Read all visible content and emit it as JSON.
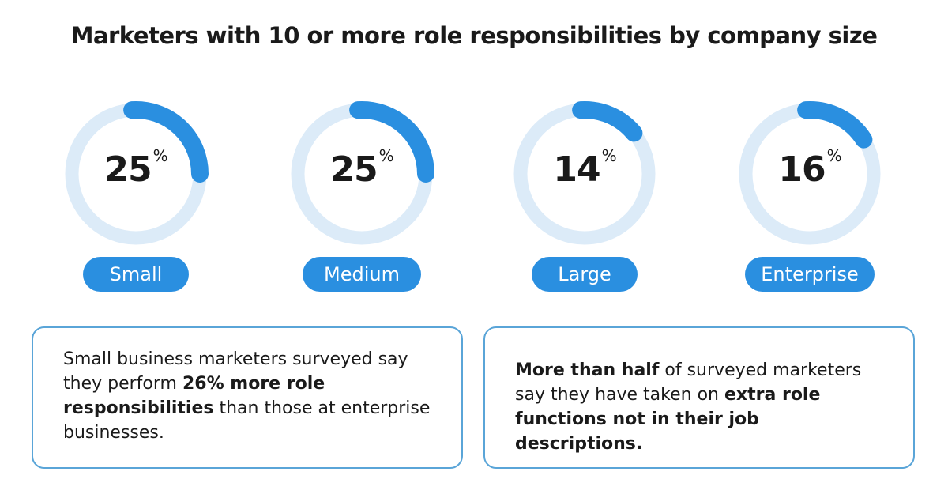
{
  "colors": {
    "arc": "#2a8fe0",
    "track": "#dcebf8",
    "pill": "#2a8fe0"
  },
  "chart_data": {
    "type": "donut-gauges",
    "title": "Marketers with 10 or more role responsibilities by company size",
    "categories": [
      "Small",
      "Medium",
      "Large",
      "Enterprise"
    ],
    "values": [
      25,
      25,
      14,
      16
    ],
    "unit": "%"
  },
  "notes": {
    "left": {
      "t1": "Small business marketers surveyed say they perform ",
      "b1": "26% more role responsibilities",
      "t2": " than those at enterprise businesses."
    },
    "right": {
      "b1": "More than half",
      "t1": " of surveyed marketers say they have taken on ",
      "b2": "extra role functions not in their job descriptions."
    }
  }
}
